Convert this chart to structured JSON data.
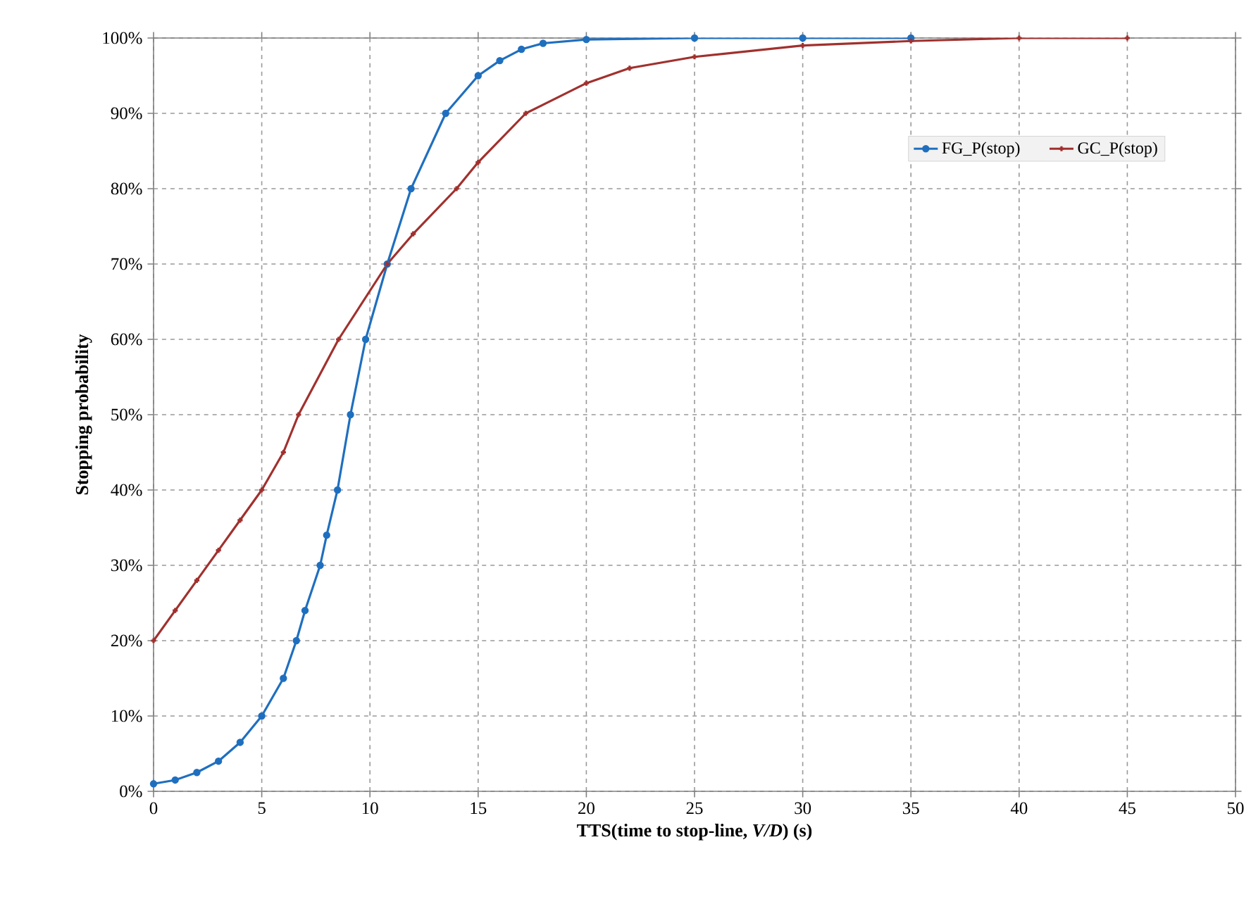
{
  "chart_data": {
    "type": "line",
    "xlabel": "TTS(time to stop-line, *V/D*) (s)",
    "ylabel": "Stopping  probability",
    "xlim": [
      0,
      50
    ],
    "xticks": [
      0,
      5,
      10,
      15,
      20,
      25,
      30,
      35,
      40,
      45,
      50
    ],
    "ylim": [
      0,
      100
    ],
    "yticks": [
      {
        "value": 0,
        "label": "0%"
      },
      {
        "value": 10,
        "label": "10%"
      },
      {
        "value": 20,
        "label": "20%"
      },
      {
        "value": 30,
        "label": "30%"
      },
      {
        "value": 40,
        "label": "40%"
      },
      {
        "value": 50,
        "label": "50%"
      },
      {
        "value": 60,
        "label": "60%"
      },
      {
        "value": 70,
        "label": "70%"
      },
      {
        "value": 80,
        "label": "80%"
      },
      {
        "value": 90,
        "label": "90%"
      },
      {
        "value": 100,
        "label": "100%"
      }
    ],
    "grid": true,
    "legend": "top right",
    "series": [
      {
        "name": "FG_P(stop)",
        "color": "#1f6fbf",
        "marker": "circle",
        "x": [
          0,
          1,
          2,
          3,
          4,
          5,
          6,
          6.6,
          7,
          7.7,
          8,
          8.5,
          9.1,
          9.8,
          10.8,
          11.9,
          13.5,
          15,
          16,
          17,
          18,
          20,
          25,
          30,
          35
        ],
        "values": [
          1,
          1.5,
          2.5,
          4,
          6.5,
          10,
          15,
          20,
          24,
          30,
          34,
          40,
          50,
          60,
          70,
          80,
          90,
          95,
          97,
          98.5,
          99.3,
          99.8,
          100,
          100,
          100
        ]
      },
      {
        "name": "GC_P(stop)",
        "color": "#a0312e",
        "marker": "cross",
        "x": [
          0,
          1,
          2,
          3,
          4,
          5,
          6,
          6.7,
          8.55,
          10.8,
          12,
          14,
          15,
          17.2,
          20,
          22,
          25,
          30,
          35,
          40,
          45
        ],
        "values": [
          20,
          24,
          28,
          32,
          36,
          40,
          45,
          50,
          60,
          70,
          74,
          80,
          83.5,
          90,
          94,
          96,
          97.5,
          99,
          99.6,
          100,
          100
        ]
      }
    ]
  }
}
